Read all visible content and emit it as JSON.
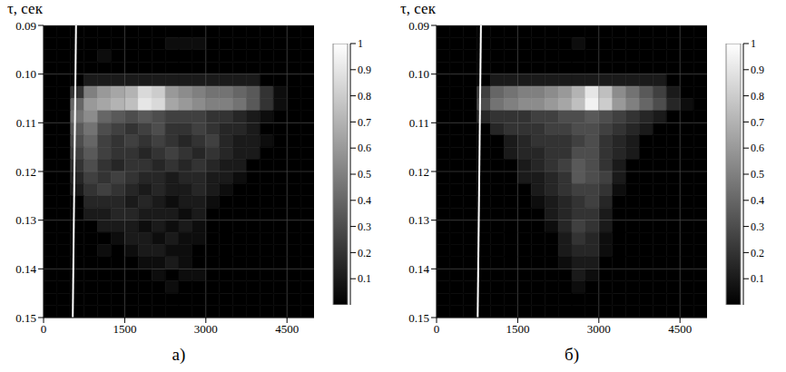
{
  "chart_data": [
    {
      "type": "heatmap",
      "caption": "а)",
      "ylabel": "τ, сек",
      "xlim": [
        0,
        5000
      ],
      "xticks": [
        0,
        1500,
        3000,
        4500
      ],
      "ylim": [
        0.09,
        0.15
      ],
      "yticks": [
        0.09,
        {
          "value": 0.1,
          "label": "0.10"
        },
        0.11,
        0.12,
        0.13,
        0.14,
        0.15
      ],
      "grid": true,
      "line": {
        "x": [
          540,
          600
        ],
        "y": [
          0.15,
          0.09
        ],
        "color": "#ffffff"
      },
      "colorbar": {
        "lim": [
          0,
          1
        ],
        "ticks": [
          0.1,
          0.2,
          0.3,
          0.4,
          0.5,
          0.6,
          0.7,
          0.8,
          0.9,
          1
        ]
      },
      "cells": {
        "x": [
          125,
          375,
          625,
          875,
          1125,
          1375,
          1625,
          1875,
          2125,
          2375,
          2625,
          2875,
          3125,
          3375,
          3625,
          3875,
          4125,
          4375,
          4625,
          4875
        ],
        "y": [
          0.09125,
          0.09375,
          0.09625,
          0.09875,
          0.10125,
          0.10375,
          0.10625,
          0.10875,
          0.11125,
          0.11375,
          0.11625,
          0.11875,
          0.12125,
          0.12375,
          0.12625,
          0.12875,
          0.13125,
          0.13375,
          0.13625,
          0.13875,
          0.14125,
          0.14375,
          0.14625,
          0.14875
        ],
        "z": [
          [
            0,
            0,
            0,
            0,
            0,
            0,
            0,
            0,
            0,
            0,
            0,
            0,
            0,
            0,
            0,
            0,
            0,
            0,
            0,
            0
          ],
          [
            0,
            0,
            0,
            0,
            0,
            0,
            0,
            0,
            0,
            0.05,
            0.05,
            0.05,
            0,
            0,
            0,
            0,
            0,
            0,
            0,
            0
          ],
          [
            0,
            0,
            0,
            0,
            0.05,
            0,
            0,
            0,
            0,
            0,
            0,
            0,
            0,
            0,
            0,
            0,
            0,
            0,
            0,
            0
          ],
          [
            0,
            0,
            0,
            0,
            0,
            0,
            0,
            0,
            0,
            0,
            0,
            0,
            0,
            0,
            0,
            0,
            0,
            0,
            0,
            0
          ],
          [
            0,
            0,
            0,
            0.1,
            0.1,
            0.1,
            0.1,
            0.1,
            0.1,
            0.1,
            0.1,
            0.1,
            0.1,
            0.1,
            0.1,
            0.1,
            0,
            0,
            0,
            0
          ],
          [
            0,
            0,
            0.2,
            0.5,
            0.6,
            0.65,
            0.7,
            0.85,
            0.8,
            0.6,
            0.55,
            0.5,
            0.45,
            0.45,
            0.4,
            0.35,
            0.2,
            0.05,
            0,
            0
          ],
          [
            0,
            0,
            0.4,
            0.6,
            0.65,
            0.7,
            0.75,
            0.9,
            0.85,
            0.65,
            0.6,
            0.55,
            0.5,
            0.5,
            0.45,
            0.35,
            0.2,
            0.05,
            0,
            0
          ],
          [
            0,
            0,
            0.45,
            0.55,
            0.4,
            0.35,
            0.3,
            0.35,
            0.3,
            0.25,
            0.25,
            0.25,
            0.2,
            0.2,
            0.15,
            0.1,
            0.05,
            0,
            0,
            0
          ],
          [
            0,
            0,
            0.35,
            0.45,
            0.3,
            0.25,
            0.2,
            0.25,
            0.3,
            0.2,
            0.2,
            0.25,
            0.2,
            0.15,
            0.15,
            0.1,
            0,
            0,
            0,
            0
          ],
          [
            0,
            0,
            0.3,
            0.4,
            0.25,
            0.2,
            0.25,
            0.2,
            0.25,
            0.2,
            0.15,
            0.2,
            0.25,
            0.15,
            0.1,
            0.1,
            0.05,
            0,
            0,
            0
          ],
          [
            0,
            0,
            0.25,
            0.35,
            0.25,
            0.2,
            0.2,
            0.15,
            0.2,
            0.25,
            0.2,
            0.15,
            0.2,
            0.15,
            0.1,
            0.1,
            0,
            0,
            0,
            0
          ],
          [
            0,
            0,
            0.2,
            0.3,
            0.2,
            0.15,
            0.2,
            0.2,
            0.15,
            0.2,
            0.15,
            0.2,
            0.15,
            0.1,
            0.1,
            0,
            0,
            0,
            0,
            0
          ],
          [
            0,
            0,
            0.15,
            0.25,
            0.2,
            0.25,
            0.2,
            0.15,
            0.15,
            0.1,
            0.15,
            0.15,
            0.1,
            0.1,
            0.05,
            0,
            0,
            0,
            0,
            0
          ],
          [
            0,
            0,
            0.1,
            0.2,
            0.25,
            0.2,
            0.15,
            0.1,
            0.15,
            0.1,
            0.1,
            0.15,
            0.1,
            0.05,
            0,
            0,
            0,
            0,
            0,
            0
          ],
          [
            0,
            0,
            0,
            0.15,
            0.15,
            0.15,
            0.1,
            0.15,
            0.1,
            0.05,
            0.1,
            0.1,
            0.05,
            0,
            0,
            0,
            0,
            0,
            0,
            0
          ],
          [
            0,
            0,
            0,
            0.1,
            0.1,
            0.15,
            0.15,
            0.1,
            0.1,
            0.1,
            0.05,
            0.1,
            0,
            0,
            0,
            0,
            0,
            0,
            0,
            0
          ],
          [
            0,
            0,
            0,
            0,
            0.1,
            0.1,
            0.1,
            0.05,
            0.1,
            0.05,
            0.1,
            0.05,
            0,
            0,
            0,
            0,
            0,
            0,
            0,
            0
          ],
          [
            0,
            0,
            0,
            0,
            0,
            0.05,
            0.1,
            0.1,
            0.05,
            0.1,
            0.05,
            0.05,
            0,
            0,
            0,
            0,
            0,
            0,
            0,
            0
          ],
          [
            0,
            0,
            0,
            0,
            0.05,
            0,
            0.05,
            0.1,
            0.1,
            0.05,
            0.05,
            0,
            0,
            0,
            0,
            0,
            0,
            0,
            0,
            0
          ],
          [
            0,
            0,
            0,
            0,
            0,
            0,
            0,
            0.05,
            0.05,
            0.1,
            0.05,
            0,
            0,
            0,
            0,
            0,
            0,
            0,
            0,
            0
          ],
          [
            0,
            0,
            0,
            0,
            0,
            0,
            0,
            0,
            0.05,
            0,
            0.05,
            0.05,
            0,
            0,
            0,
            0,
            0,
            0,
            0,
            0
          ],
          [
            0,
            0,
            0,
            0,
            0,
            0,
            0,
            0,
            0,
            0.05,
            0,
            0,
            0,
            0,
            0,
            0,
            0,
            0,
            0,
            0
          ],
          [
            0,
            0,
            0,
            0,
            0,
            0,
            0,
            0,
            0,
            0,
            0,
            0,
            0,
            0,
            0,
            0,
            0,
            0,
            0,
            0
          ],
          [
            0,
            0,
            0,
            0,
            0,
            0,
            0,
            0,
            0,
            0,
            0,
            0,
            0,
            0,
            0,
            0,
            0,
            0,
            0,
            0
          ]
        ]
      }
    },
    {
      "type": "heatmap",
      "caption": "б)",
      "ylabel": "τ, сек",
      "xlim": [
        0,
        5000
      ],
      "xticks": [
        0,
        1500,
        3000,
        4500
      ],
      "ylim": [
        0.09,
        0.15
      ],
      "yticks": [
        0.09,
        {
          "value": 0.1,
          "label": "0.10"
        },
        0.11,
        0.12,
        0.13,
        0.14,
        0.15
      ],
      "grid": true,
      "line": {
        "x": [
          760,
          820
        ],
        "y": [
          0.15,
          0.09
        ],
        "color": "#ffffff"
      },
      "colorbar": {
        "lim": [
          0,
          1
        ],
        "ticks": [
          0.1,
          0.2,
          0.3,
          0.4,
          0.5,
          0.6,
          0.7,
          0.8,
          0.9,
          1
        ]
      },
      "cells": {
        "x": [
          125,
          375,
          625,
          875,
          1125,
          1375,
          1625,
          1875,
          2125,
          2375,
          2625,
          2875,
          3125,
          3375,
          3625,
          3875,
          4125,
          4375,
          4625,
          4875
        ],
        "y": [
          0.09125,
          0.09375,
          0.09625,
          0.09875,
          0.10125,
          0.10375,
          0.10625,
          0.10875,
          0.11125,
          0.11375,
          0.11625,
          0.11875,
          0.12125,
          0.12375,
          0.12625,
          0.12875,
          0.13125,
          0.13375,
          0.13625,
          0.13875,
          0.14125,
          0.14375,
          0.14625,
          0.14875
        ],
        "z": [
          [
            0,
            0,
            0,
            0,
            0,
            0,
            0,
            0,
            0,
            0,
            0,
            0,
            0,
            0,
            0,
            0,
            0,
            0,
            0,
            0
          ],
          [
            0,
            0,
            0,
            0,
            0,
            0,
            0,
            0,
            0,
            0,
            0.05,
            0,
            0,
            0,
            0,
            0,
            0,
            0,
            0,
            0
          ],
          [
            0,
            0,
            0,
            0,
            0,
            0,
            0,
            0,
            0,
            0,
            0,
            0,
            0,
            0,
            0,
            0,
            0,
            0,
            0,
            0
          ],
          [
            0,
            0,
            0,
            0,
            0,
            0,
            0,
            0,
            0,
            0,
            0,
            0,
            0,
            0,
            0,
            0,
            0,
            0,
            0,
            0
          ],
          [
            0,
            0,
            0,
            0,
            0.1,
            0.1,
            0.1,
            0.1,
            0.1,
            0.1,
            0.1,
            0.1,
            0.1,
            0.1,
            0.1,
            0.1,
            0.1,
            0,
            0,
            0
          ],
          [
            0,
            0,
            0,
            0.25,
            0.4,
            0.45,
            0.5,
            0.5,
            0.55,
            0.6,
            0.7,
            0.9,
            0.75,
            0.55,
            0.45,
            0.35,
            0.25,
            0.1,
            0,
            0
          ],
          [
            0,
            0,
            0,
            0.3,
            0.45,
            0.5,
            0.55,
            0.55,
            0.6,
            0.65,
            0.75,
            0.95,
            0.8,
            0.6,
            0.5,
            0.4,
            0.3,
            0.15,
            0.05,
            0
          ],
          [
            0,
            0,
            0,
            0.15,
            0.2,
            0.2,
            0.2,
            0.25,
            0.25,
            0.3,
            0.3,
            0.35,
            0.3,
            0.25,
            0.2,
            0.15,
            0.1,
            0,
            0,
            0
          ],
          [
            0,
            0,
            0,
            0,
            0.15,
            0.2,
            0.2,
            0.2,
            0.25,
            0.25,
            0.3,
            0.3,
            0.25,
            0.2,
            0.15,
            0.1,
            0,
            0,
            0,
            0
          ],
          [
            0,
            0,
            0,
            0,
            0,
            0.1,
            0.15,
            0.2,
            0.2,
            0.2,
            0.25,
            0.3,
            0.2,
            0.15,
            0.1,
            0,
            0,
            0,
            0,
            0
          ],
          [
            0,
            0,
            0,
            0,
            0,
            0.1,
            0.15,
            0.15,
            0.2,
            0.2,
            0.3,
            0.3,
            0.2,
            0.15,
            0.1,
            0,
            0,
            0,
            0,
            0
          ],
          [
            0,
            0,
            0,
            0,
            0,
            0,
            0.1,
            0.15,
            0.2,
            0.25,
            0.35,
            0.3,
            0.2,
            0.1,
            0,
            0,
            0,
            0,
            0,
            0
          ],
          [
            0,
            0,
            0,
            0,
            0,
            0,
            0.1,
            0.1,
            0.15,
            0.2,
            0.35,
            0.3,
            0.25,
            0.1,
            0,
            0,
            0,
            0,
            0,
            0
          ],
          [
            0,
            0,
            0,
            0,
            0,
            0,
            0,
            0.1,
            0.15,
            0.2,
            0.25,
            0.25,
            0.2,
            0.05,
            0,
            0,
            0,
            0,
            0,
            0
          ],
          [
            0,
            0,
            0,
            0,
            0,
            0,
            0,
            0.05,
            0.1,
            0.15,
            0.2,
            0.25,
            0.15,
            0,
            0,
            0,
            0,
            0,
            0,
            0
          ],
          [
            0,
            0,
            0,
            0,
            0,
            0,
            0,
            0,
            0.1,
            0.15,
            0.2,
            0.2,
            0.1,
            0,
            0,
            0,
            0,
            0,
            0,
            0
          ],
          [
            0,
            0,
            0,
            0,
            0,
            0,
            0,
            0,
            0.05,
            0.15,
            0.25,
            0.2,
            0.1,
            0,
            0,
            0,
            0,
            0,
            0,
            0
          ],
          [
            0,
            0,
            0,
            0,
            0,
            0,
            0,
            0,
            0,
            0.1,
            0.2,
            0.15,
            0.05,
            0,
            0,
            0,
            0,
            0,
            0,
            0
          ],
          [
            0,
            0,
            0,
            0,
            0,
            0,
            0,
            0,
            0,
            0.1,
            0.15,
            0.15,
            0.05,
            0,
            0,
            0,
            0,
            0,
            0,
            0
          ],
          [
            0,
            0,
            0,
            0,
            0,
            0,
            0,
            0,
            0,
            0.05,
            0.1,
            0.1,
            0,
            0,
            0,
            0,
            0,
            0,
            0,
            0
          ],
          [
            0,
            0,
            0,
            0,
            0,
            0,
            0,
            0,
            0,
            0,
            0.1,
            0.05,
            0,
            0,
            0,
            0,
            0,
            0,
            0,
            0
          ],
          [
            0,
            0,
            0,
            0,
            0,
            0,
            0,
            0,
            0,
            0,
            0.05,
            0,
            0,
            0,
            0,
            0,
            0,
            0,
            0,
            0
          ],
          [
            0,
            0,
            0,
            0,
            0,
            0,
            0,
            0,
            0,
            0,
            0,
            0,
            0,
            0,
            0,
            0,
            0,
            0,
            0,
            0
          ],
          [
            0,
            0,
            0,
            0,
            0,
            0,
            0,
            0,
            0,
            0,
            0,
            0,
            0,
            0,
            0,
            0,
            0,
            0,
            0,
            0
          ]
        ]
      }
    }
  ]
}
